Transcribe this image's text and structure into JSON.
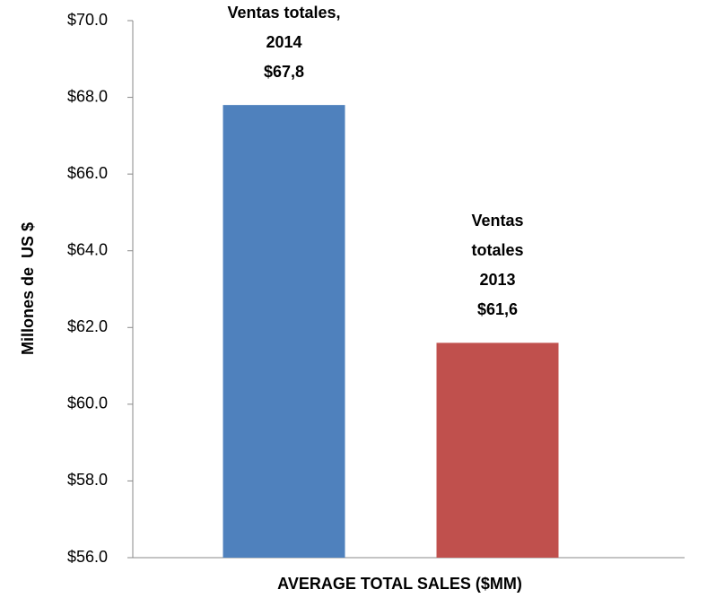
{
  "chart_data": {
    "type": "bar",
    "categories": [
      "AVERAGE TOTAL SALES ($MM)"
    ],
    "y_label": "Millones de  US $",
    "series": [
      {
        "name": "Ventas totales, 2014",
        "color": "#4f81bd",
        "values": [
          67.8
        ],
        "value_labels": [
          "$67,8"
        ]
      },
      {
        "name": "Ventas totales 2013",
        "color": "#c0504d",
        "values": [
          61.6
        ],
        "value_labels": [
          "$61,6"
        ]
      }
    ],
    "ylim": [
      56,
      70
    ],
    "yticks": [
      {
        "value": 56,
        "label": "$56.0"
      },
      {
        "value": 58,
        "label": "$58.0"
      },
      {
        "value": 60,
        "label": "$60.0"
      },
      {
        "value": 62,
        "label": "$62.0"
      },
      {
        "value": 64,
        "label": "$64.0"
      },
      {
        "value": 66,
        "label": "$66.0"
      },
      {
        "value": 68,
        "label": "$68.0"
      },
      {
        "value": 70,
        "label": "$70.0"
      }
    ],
    "grid": false
  }
}
